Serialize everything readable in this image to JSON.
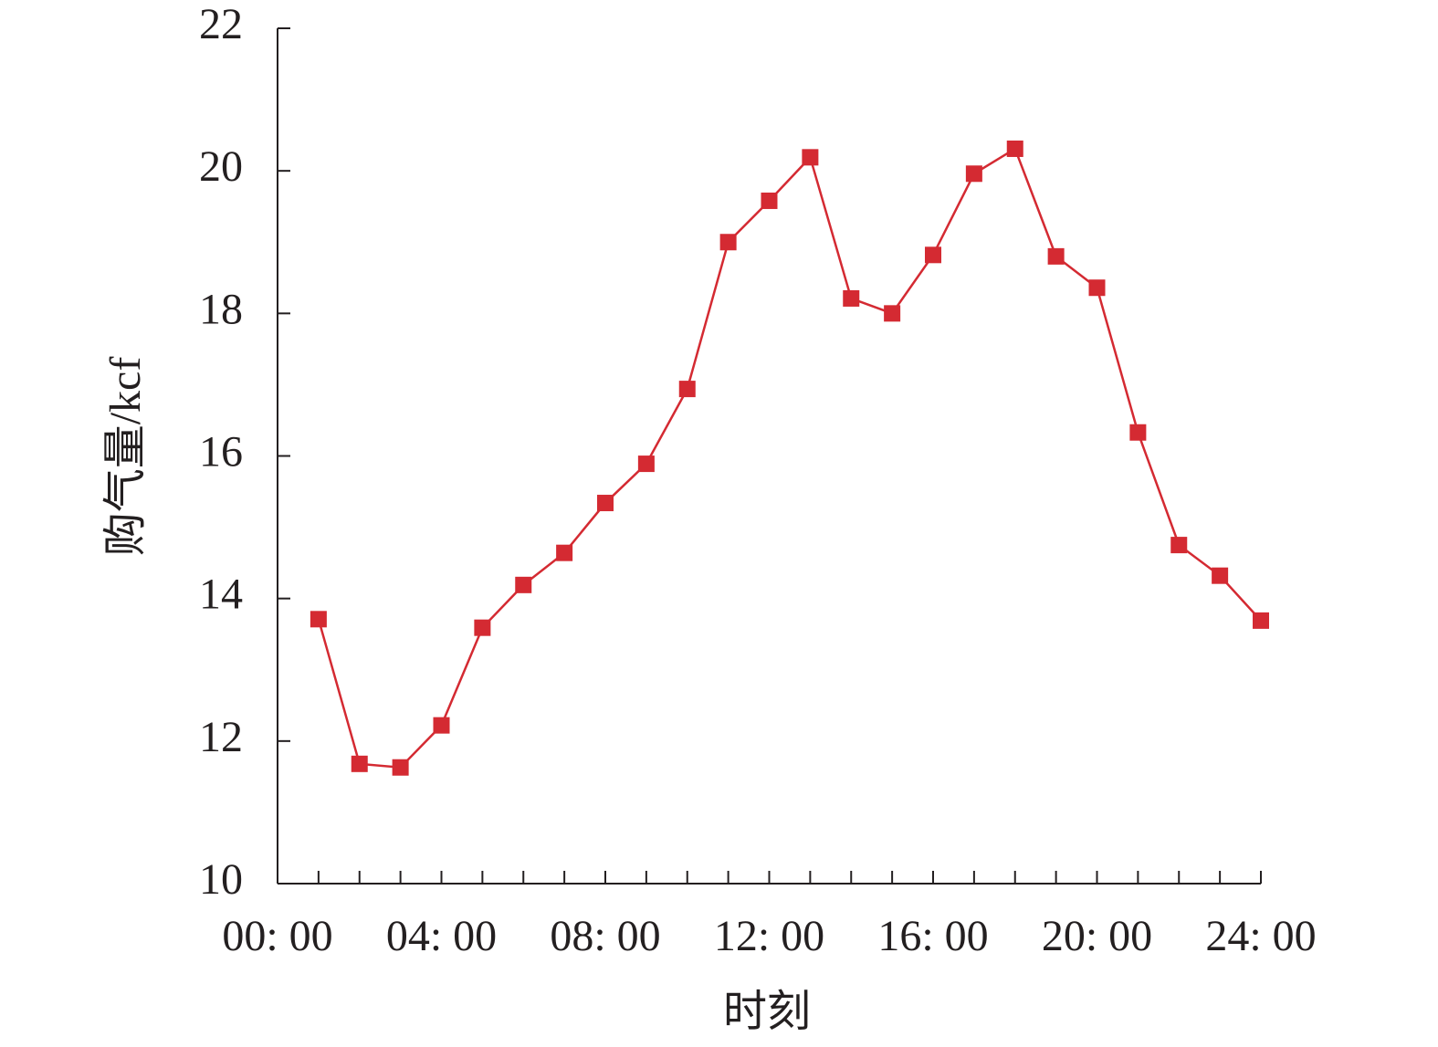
{
  "chart_data": {
    "type": "line",
    "x_label": "时刻",
    "y_label": "购气量/kcf",
    "x": [
      1,
      2,
      3,
      4,
      5,
      6,
      7,
      8,
      9,
      10,
      11,
      12,
      13,
      14,
      15,
      16,
      17,
      18,
      19,
      20,
      21,
      22,
      23,
      24
    ],
    "series": [
      {
        "color": "#d42a32",
        "values": [
          13.71,
          11.68,
          11.63,
          12.22,
          13.59,
          14.19,
          14.64,
          15.34,
          15.89,
          16.94,
          19.0,
          19.58,
          20.19,
          18.21,
          18.0,
          18.82,
          19.96,
          20.31,
          18.8,
          18.36,
          16.33,
          14.75,
          14.32,
          13.69
        ]
      }
    ],
    "xlim": [
      0,
      24
    ],
    "xticks": [
      {
        "value": 0,
        "label": "00: 00"
      },
      {
        "value": 4,
        "label": "04: 00"
      },
      {
        "value": 8,
        "label": "08: 00"
      },
      {
        "value": 12,
        "label": "12: 00"
      },
      {
        "value": 16,
        "label": "16: 00"
      },
      {
        "value": 20,
        "label": "20: 00"
      },
      {
        "value": 24,
        "label": "24: 00"
      }
    ],
    "ylim": [
      10,
      22
    ],
    "yticks": [
      10,
      12,
      14,
      16,
      18,
      20,
      22
    ],
    "grid": false
  }
}
